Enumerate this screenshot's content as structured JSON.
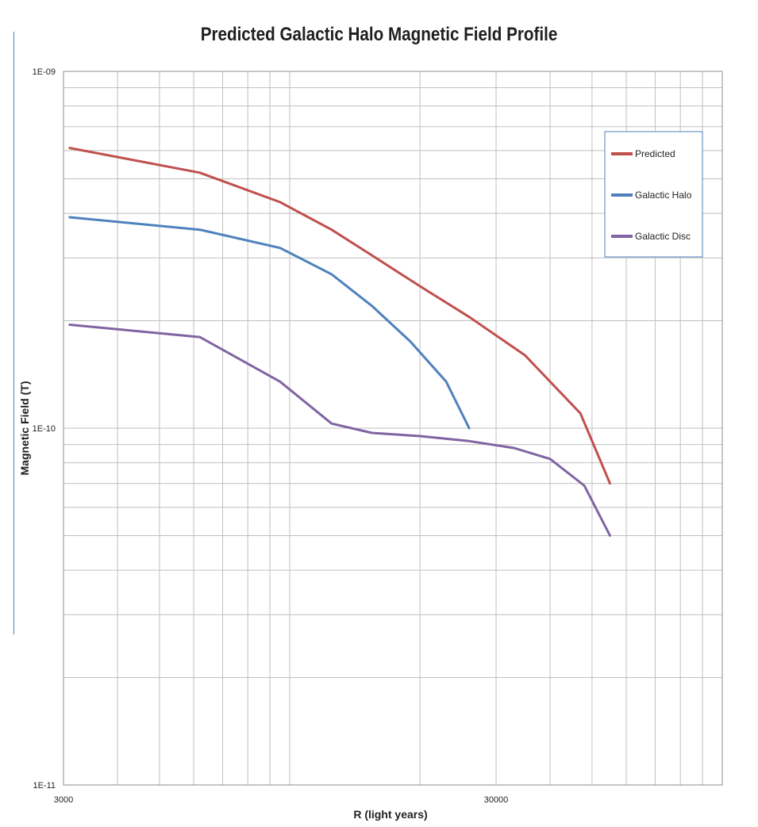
{
  "chart_data": {
    "type": "line",
    "title": "Predicted Galactic Halo Magnetic Field Profile",
    "xlabel": "R (light years)",
    "ylabel": "Magnetic Field (T)",
    "xscale": "log",
    "yscale": "log",
    "xlim": [
      3000,
      60000
    ],
    "ylim": [
      1e-11,
      1e-09
    ],
    "x_tick_labels": [
      {
        "value": 3000,
        "label": "3000"
      },
      {
        "value": 30000,
        "label": "30000"
      }
    ],
    "y_tick_labels": [
      {
        "value": 1e-09,
        "label": "1E-09"
      },
      {
        "value": 1e-10,
        "label": "1E-10"
      },
      {
        "value": 1e-11,
        "label": "1E-11"
      }
    ],
    "grid": true,
    "legend": "right",
    "series": [
      {
        "name": "Predicted",
        "color": "#c0504d",
        "points": [
          [
            3100,
            6.1e-10
          ],
          [
            6200,
            5.2e-10
          ],
          [
            9500,
            4.3e-10
          ],
          [
            12500,
            3.6e-10
          ],
          [
            15500,
            3.05e-10
          ],
          [
            20000,
            2.5e-10
          ],
          [
            26000,
            2.05e-10
          ],
          [
            35000,
            1.6e-10
          ],
          [
            47000,
            1.1e-10
          ],
          [
            55000,
            7e-11
          ]
        ]
      },
      {
        "name": "Galactic Halo",
        "color": "#4f81bd",
        "points": [
          [
            3100,
            3.9e-10
          ],
          [
            6200,
            3.6e-10
          ],
          [
            9500,
            3.2e-10
          ],
          [
            12500,
            2.7e-10
          ],
          [
            15500,
            2.2e-10
          ],
          [
            19000,
            1.75e-10
          ],
          [
            23000,
            1.35e-10
          ],
          [
            26000,
            1e-10
          ]
        ]
      },
      {
        "name": "Galactic Disc",
        "color": "#8064a2",
        "points": [
          [
            3100,
            1.95e-10
          ],
          [
            6200,
            1.8e-10
          ],
          [
            9500,
            1.35e-10
          ],
          [
            12500,
            1.03e-10
          ],
          [
            15500,
            9.7e-11
          ],
          [
            20000,
            9.5e-11
          ],
          [
            26000,
            9.2e-11
          ],
          [
            33000,
            8.8e-11
          ],
          [
            40000,
            8.2e-11
          ],
          [
            48000,
            6.9e-11
          ],
          [
            55000,
            5e-11
          ]
        ]
      }
    ]
  }
}
